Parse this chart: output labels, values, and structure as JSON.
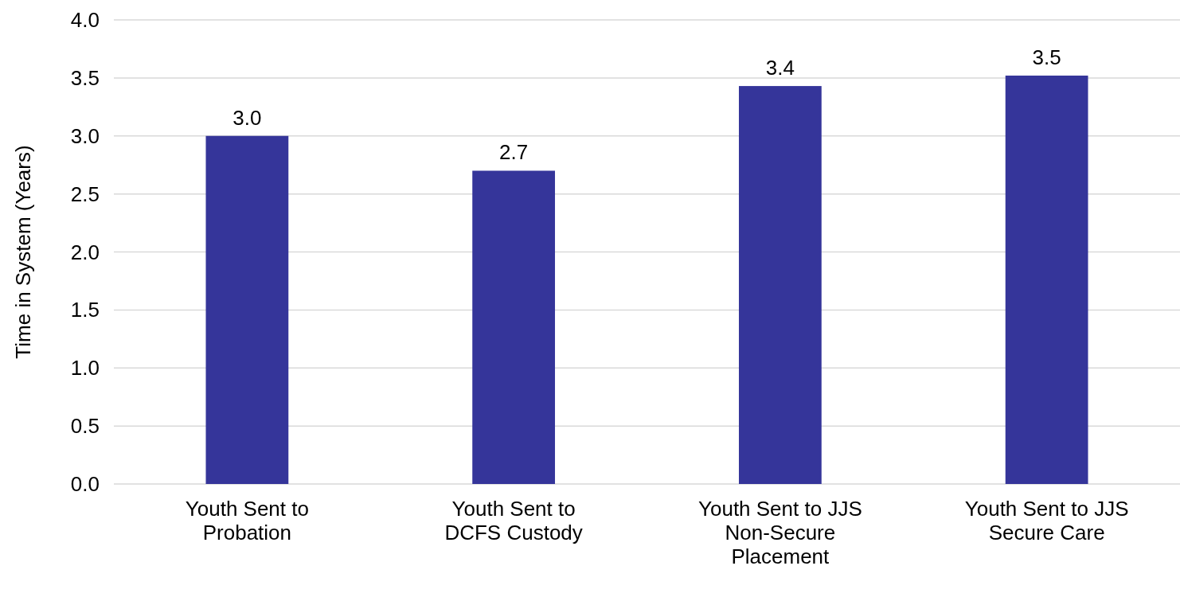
{
  "chart_data": {
    "type": "bar",
    "ylabel": "Time in System (Years)",
    "categories": [
      "Youth Sent to Probation",
      "Youth Sent to DCFS Custody",
      "Youth Sent to JJS Non-Secure Placement",
      "Youth Sent to JJS Secure Care"
    ],
    "values": [
      3.0,
      2.7,
      3.43,
      3.52
    ],
    "value_labels": [
      "3.0",
      "2.7",
      "3.4",
      "3.5"
    ],
    "color": "#35359a",
    "ylim": [
      0,
      4
    ],
    "yticks": [
      {
        "value": 0,
        "label": "0.0"
      },
      {
        "value": 0.5,
        "label": "0.5"
      },
      {
        "value": 1,
        "label": "1.0"
      },
      {
        "value": 1.5,
        "label": "1.5"
      },
      {
        "value": 2,
        "label": "2.0"
      },
      {
        "value": 2.5,
        "label": "2.5"
      },
      {
        "value": 3,
        "label": "3.0"
      },
      {
        "value": 3.5,
        "label": "3.5"
      },
      {
        "value": 4,
        "label": "4.0"
      }
    ],
    "grid": "y"
  }
}
